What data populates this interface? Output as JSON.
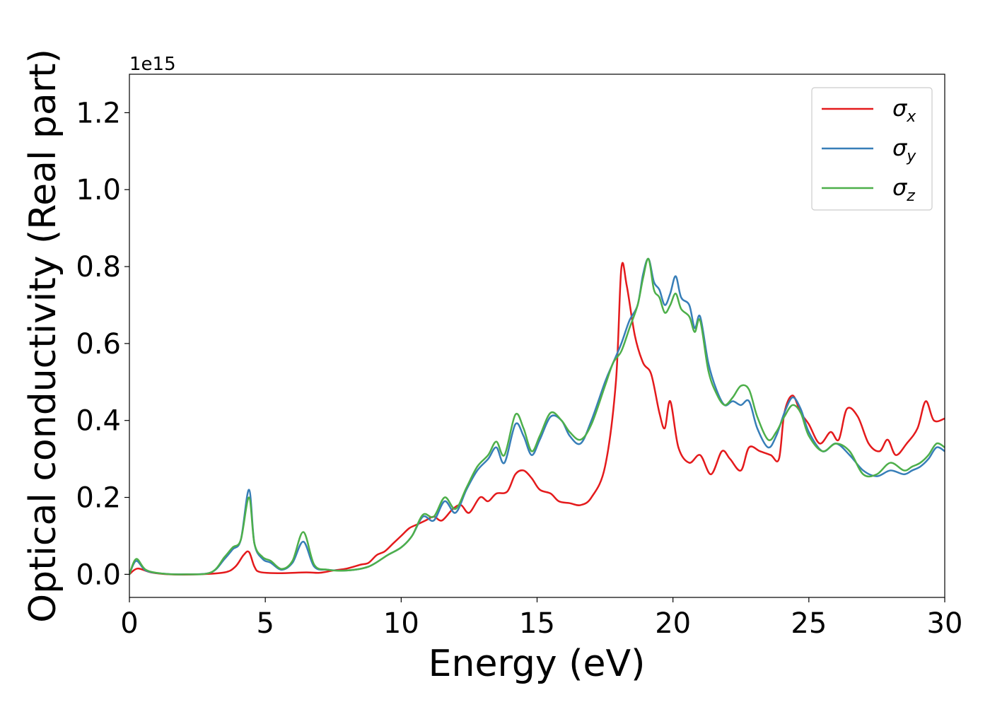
{
  "chart_data": {
    "type": "line",
    "title": "",
    "xlabel": "Energy (eV)",
    "ylabel": "Optical conductivity (Real part)",
    "y_offset_text": "1e15",
    "xlim": [
      0,
      30
    ],
    "ylim": [
      -0.06,
      1.3
    ],
    "xticks": [
      0,
      5,
      10,
      15,
      20,
      25,
      30
    ],
    "yticks": [
      0.0,
      0.2,
      0.4,
      0.6,
      0.8,
      1.0,
      1.2
    ],
    "xtick_labels": [
      "0",
      "5",
      "10",
      "15",
      "20",
      "25",
      "30"
    ],
    "ytick_labels": [
      "0.0",
      "0.2",
      "0.4",
      "0.6",
      "0.8",
      "1.0",
      "1.2"
    ],
    "grid": false,
    "legend_position": "top-right",
    "series": [
      {
        "name": "σx",
        "legend_symbol": "σ",
        "legend_subscript": "x",
        "color": "#e41a1c",
        "x": [
          0,
          0.3,
          0.8,
          1.5,
          2.5,
          3.5,
          3.9,
          4.2,
          4.4,
          4.6,
          4.8,
          5.5,
          6.5,
          7.0,
          7.5,
          8.0,
          8.5,
          8.8,
          9.1,
          9.4,
          9.7,
          10.0,
          10.3,
          10.6,
          10.9,
          11.2,
          11.5,
          11.9,
          12.2,
          12.5,
          12.9,
          13.2,
          13.5,
          13.9,
          14.2,
          14.5,
          14.8,
          15.1,
          15.5,
          15.8,
          16.2,
          16.6,
          17.0,
          17.5,
          17.9,
          18.1,
          18.3,
          18.6,
          18.9,
          19.2,
          19.5,
          19.7,
          19.9,
          20.2,
          20.6,
          21.0,
          21.4,
          21.8,
          22.1,
          22.5,
          22.8,
          23.2,
          23.6,
          23.9,
          24.1,
          24.4,
          24.7,
          25.0,
          25.4,
          25.8,
          26.1,
          26.4,
          26.8,
          27.2,
          27.6,
          27.9,
          28.2,
          28.6,
          29.0,
          29.3,
          29.6,
          30.0
        ],
        "y": [
          0.0,
          0.015,
          0.005,
          0.0,
          0.0,
          0.005,
          0.02,
          0.05,
          0.058,
          0.02,
          0.006,
          0.003,
          0.005,
          0.004,
          0.01,
          0.015,
          0.025,
          0.03,
          0.05,
          0.06,
          0.08,
          0.1,
          0.12,
          0.13,
          0.14,
          0.15,
          0.14,
          0.17,
          0.18,
          0.16,
          0.2,
          0.19,
          0.21,
          0.215,
          0.26,
          0.27,
          0.25,
          0.22,
          0.21,
          0.19,
          0.185,
          0.18,
          0.2,
          0.28,
          0.5,
          0.795,
          0.75,
          0.62,
          0.55,
          0.52,
          0.42,
          0.38,
          0.45,
          0.33,
          0.29,
          0.31,
          0.26,
          0.32,
          0.3,
          0.27,
          0.33,
          0.32,
          0.31,
          0.3,
          0.42,
          0.465,
          0.42,
          0.39,
          0.34,
          0.37,
          0.35,
          0.43,
          0.41,
          0.34,
          0.32,
          0.35,
          0.31,
          0.34,
          0.38,
          0.45,
          0.4,
          0.405
        ]
      },
      {
        "name": "σy",
        "legend_symbol": "σ",
        "legend_subscript": "y",
        "color": "#377eb8",
        "x": [
          0,
          0.25,
          0.6,
          1.2,
          2.0,
          3.0,
          3.5,
          3.8,
          4.1,
          4.4,
          4.6,
          4.9,
          5.2,
          5.6,
          6.0,
          6.4,
          6.8,
          7.3,
          8.0,
          8.8,
          9.5,
          10.0,
          10.4,
          10.8,
          11.2,
          11.6,
          12.0,
          12.4,
          12.8,
          13.2,
          13.5,
          13.8,
          14.2,
          14.5,
          14.8,
          15.1,
          15.5,
          15.9,
          16.2,
          16.6,
          17.0,
          17.5,
          17.8,
          18.1,
          18.4,
          18.7,
          18.9,
          19.1,
          19.3,
          19.5,
          19.7,
          19.9,
          20.1,
          20.3,
          20.6,
          20.8,
          21.0,
          21.3,
          21.6,
          21.9,
          22.2,
          22.5,
          22.8,
          23.1,
          23.5,
          23.8,
          24.1,
          24.4,
          24.7,
          25.0,
          25.5,
          26.0,
          26.5,
          27.0,
          27.5,
          28.0,
          28.5,
          28.8,
          29.1,
          29.4,
          29.7,
          30.0
        ],
        "y": [
          0.0,
          0.035,
          0.01,
          0.002,
          0.0,
          0.005,
          0.04,
          0.065,
          0.09,
          0.22,
          0.08,
          0.04,
          0.03,
          0.012,
          0.03,
          0.085,
          0.02,
          0.012,
          0.01,
          0.02,
          0.05,
          0.07,
          0.1,
          0.15,
          0.14,
          0.19,
          0.16,
          0.22,
          0.27,
          0.3,
          0.33,
          0.29,
          0.39,
          0.36,
          0.31,
          0.35,
          0.41,
          0.4,
          0.36,
          0.34,
          0.4,
          0.5,
          0.55,
          0.6,
          0.66,
          0.7,
          0.78,
          0.82,
          0.76,
          0.74,
          0.7,
          0.73,
          0.775,
          0.72,
          0.7,
          0.64,
          0.67,
          0.55,
          0.48,
          0.44,
          0.45,
          0.44,
          0.45,
          0.38,
          0.33,
          0.36,
          0.42,
          0.46,
          0.43,
          0.37,
          0.32,
          0.34,
          0.31,
          0.27,
          0.255,
          0.27,
          0.26,
          0.27,
          0.28,
          0.3,
          0.33,
          0.32
        ]
      },
      {
        "name": "σz",
        "legend_symbol": "σ",
        "legend_subscript": "z",
        "color": "#4daf4a",
        "x": [
          0,
          0.25,
          0.6,
          1.2,
          2.0,
          3.0,
          3.5,
          3.8,
          4.1,
          4.4,
          4.6,
          4.9,
          5.2,
          5.6,
          6.0,
          6.4,
          6.8,
          7.3,
          8.0,
          8.8,
          9.5,
          10.0,
          10.4,
          10.8,
          11.2,
          11.6,
          12.0,
          12.4,
          12.8,
          13.2,
          13.5,
          13.8,
          14.2,
          14.5,
          14.8,
          15.1,
          15.5,
          15.9,
          16.2,
          16.6,
          17.0,
          17.5,
          17.8,
          18.1,
          18.4,
          18.7,
          18.9,
          19.1,
          19.3,
          19.5,
          19.7,
          19.9,
          20.1,
          20.3,
          20.6,
          20.8,
          21.0,
          21.3,
          21.6,
          21.9,
          22.2,
          22.5,
          22.8,
          23.1,
          23.5,
          23.8,
          24.1,
          24.4,
          24.7,
          25.0,
          25.5,
          26.0,
          26.5,
          27.0,
          27.5,
          28.0,
          28.5,
          28.8,
          29.1,
          29.4,
          29.7,
          30.0
        ],
        "y": [
          0.0,
          0.04,
          0.012,
          0.002,
          0.0,
          0.005,
          0.045,
          0.07,
          0.09,
          0.2,
          0.08,
          0.045,
          0.035,
          0.014,
          0.035,
          0.11,
          0.025,
          0.012,
          0.01,
          0.02,
          0.05,
          0.07,
          0.1,
          0.155,
          0.15,
          0.2,
          0.17,
          0.225,
          0.28,
          0.31,
          0.345,
          0.31,
          0.415,
          0.38,
          0.32,
          0.36,
          0.42,
          0.4,
          0.37,
          0.35,
          0.39,
          0.49,
          0.55,
          0.58,
          0.64,
          0.7,
          0.77,
          0.82,
          0.74,
          0.72,
          0.68,
          0.7,
          0.73,
          0.69,
          0.67,
          0.63,
          0.66,
          0.53,
          0.47,
          0.44,
          0.46,
          0.49,
          0.48,
          0.41,
          0.35,
          0.37,
          0.41,
          0.44,
          0.42,
          0.36,
          0.32,
          0.34,
          0.32,
          0.26,
          0.26,
          0.29,
          0.27,
          0.28,
          0.29,
          0.31,
          0.34,
          0.33
        ]
      }
    ]
  }
}
